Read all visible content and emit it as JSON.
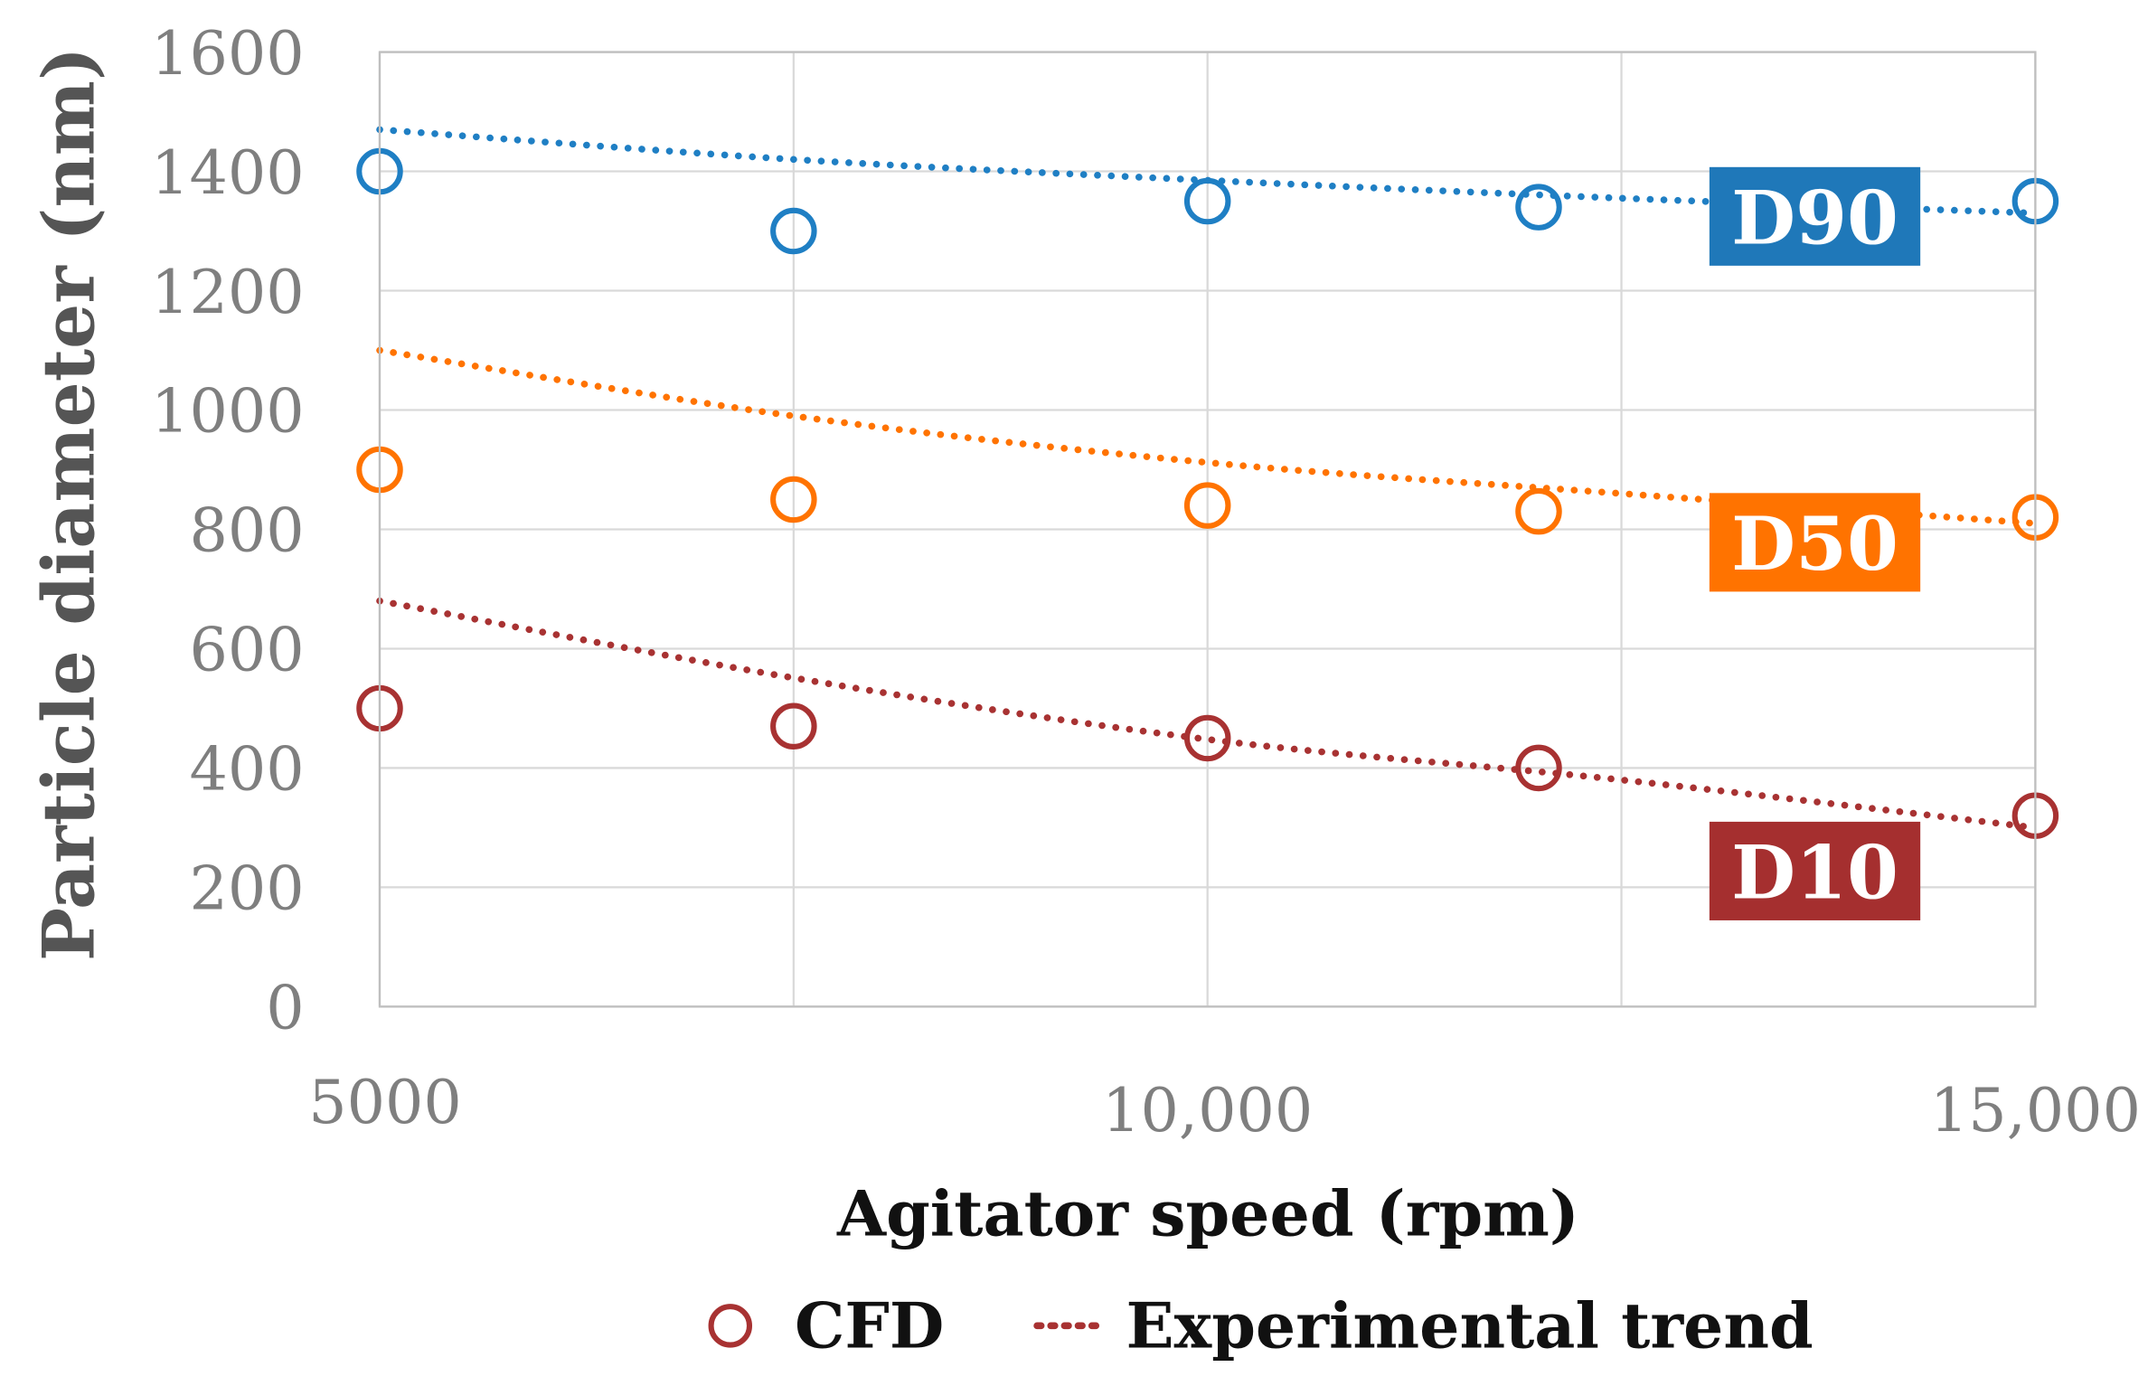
{
  "chart_data": {
    "type": "scatter",
    "title": "",
    "xlabel": "Agitator speed (rpm)",
    "ylabel": "Particle diameter (nm)",
    "xlim": [
      5000,
      15000
    ],
    "ylim": [
      0,
      1600
    ],
    "grid": true,
    "x_ticks": [
      5000,
      7500,
      10000,
      12500,
      15000
    ],
    "x_tick_labels": [
      {
        "value": 5000,
        "label": "5000"
      },
      {
        "value": 10000,
        "label": "10,000"
      },
      {
        "value": 15000,
        "label": "15,000"
      }
    ],
    "y_ticks": [
      0,
      200,
      400,
      600,
      800,
      1000,
      1200,
      1400,
      1600
    ],
    "y_tick_labels": [
      "0",
      "200",
      "400",
      "600",
      "800",
      "1000",
      "1200",
      "1400",
      "1600"
    ],
    "legend": {
      "placement": "bottom",
      "entries": [
        {
          "label": "CFD",
          "marker": "open-circle"
        },
        {
          "label": "Experimental trend",
          "marker": "dotted-line"
        }
      ]
    },
    "series": [
      {
        "name": "D90",
        "color": "#1f7fc4",
        "label_bg": "#1f78b9",
        "cfd": {
          "x": [
            5000,
            7500,
            10000,
            12000,
            15000
          ],
          "y": [
            1400,
            1300,
            1350,
            1340,
            1350
          ]
        },
        "trend": {
          "x": [
            5000,
            7500,
            10000,
            12500,
            15000
          ],
          "y": [
            1470,
            1420,
            1385,
            1355,
            1330
          ]
        }
      },
      {
        "name": "D50",
        "color": "#ff7300",
        "label_bg": "#ff7300",
        "cfd": {
          "x": [
            5000,
            7500,
            10000,
            12000,
            15000
          ],
          "y": [
            900,
            850,
            840,
            830,
            820
          ]
        },
        "trend": {
          "x": [
            5000,
            7500,
            10000,
            12500,
            15000
          ],
          "y": [
            1100,
            990,
            912,
            860,
            810
          ]
        }
      },
      {
        "name": "D10",
        "color": "#a83232",
        "label_bg": "#a52f2f",
        "cfd": {
          "x": [
            5000,
            7500,
            10000,
            12000,
            15000
          ],
          "y": [
            500,
            470,
            450,
            400,
            320
          ]
        },
        "trend": {
          "x": [
            5000,
            7500,
            10000,
            12500,
            15000
          ],
          "y": [
            680,
            551,
            448,
            380,
            300
          ]
        }
      }
    ]
  }
}
